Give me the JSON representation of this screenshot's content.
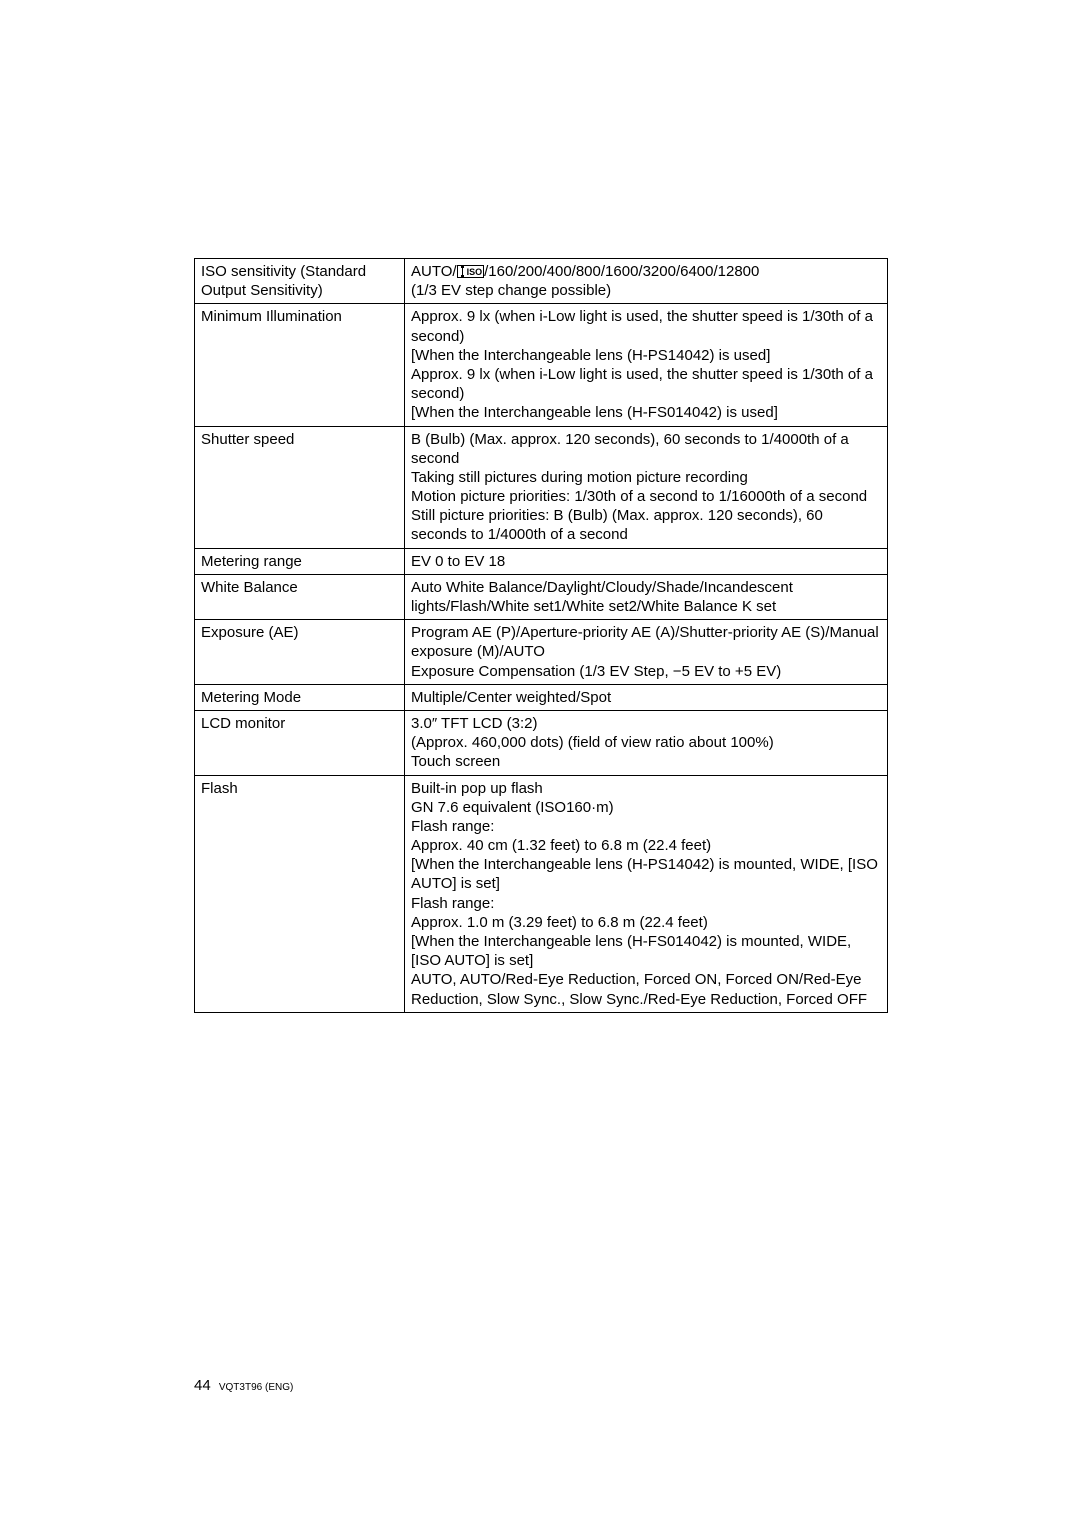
{
  "rows": [
    {
      "label": "ISO sensitivity (Standard Output Sensitivity)",
      "value_pre": "AUTO/",
      "value_icon": "ISO",
      "value_post": "/160/200/400/800/1600/3200/6400/12800\n(1/3 EV step change possible)"
    },
    {
      "label": "Minimum Illumination",
      "value": "Approx. 9 lx (when i-Low light is used, the shutter speed is 1/30th of a second)\n[When the Interchangeable lens (H-PS14042) is used]\nApprox. 9 lx (when i-Low light is used, the shutter speed is 1/30th of a second)\n[When the Interchangeable lens (H-FS014042) is used]"
    },
    {
      "label": "Shutter speed",
      "value": "B (Bulb) (Max. approx. 120 seconds), 60 seconds to 1/4000th of a second\nTaking still pictures during motion picture recording\nMotion picture priorities: 1/30th of a second to 1/16000th of a second\nStill picture priorities: B (Bulb) (Max. approx. 120 seconds), 60 seconds to 1/4000th of a second"
    },
    {
      "label": "Metering range",
      "value": "EV 0 to EV 18"
    },
    {
      "label": "White Balance",
      "value": "Auto White Balance/Daylight/Cloudy/Shade/Incandescent lights/Flash/White set1/White set2/White Balance K set"
    },
    {
      "label": "Exposure (AE)",
      "value": "Program AE (P)/Aperture-priority AE (A)/Shutter-priority AE (S)/Manual exposure (M)/AUTO\nExposure Compensation (1/3 EV Step, −5 EV to +5 EV)"
    },
    {
      "label": "Metering Mode",
      "value": "Multiple/Center weighted/Spot"
    },
    {
      "label": "LCD monitor",
      "value": "3.0″ TFT LCD (3:2)\n(Approx. 460,000 dots) (field of view ratio about 100%)\nTouch screen"
    },
    {
      "label": "Flash",
      "value": "Built-in pop up flash\nGN 7.6 equivalent (ISO160·m)\nFlash range:\nApprox. 40 cm (1.32 feet) to 6.8 m (22.4 feet)\n[When the Interchangeable lens (H-PS14042) is mounted, WIDE, [ISO AUTO] is set]\nFlash range:\nApprox. 1.0 m (3.29 feet) to 6.8 m (22.4 feet)\n[When the Interchangeable lens (H-FS014042) is mounted, WIDE, [ISO AUTO] is set]\nAUTO, AUTO/Red-Eye Reduction, Forced ON, Forced ON/Red-Eye Reduction, Slow Sync., Slow Sync./Red-Eye Reduction, Forced OFF"
    }
  ],
  "footer": {
    "page": "44",
    "code": "VQT3T96 (ENG)"
  }
}
